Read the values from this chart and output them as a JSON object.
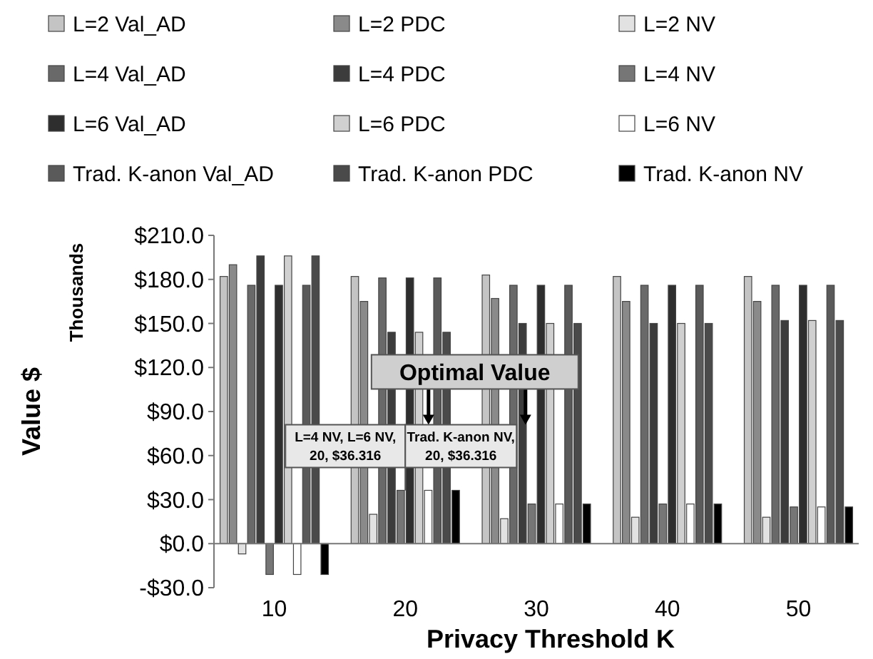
{
  "chart_data": {
    "type": "bar",
    "xlabel": "Privacy Threshold K",
    "ylabel": "Value $",
    "categories": [
      "10",
      "20",
      "30",
      "40",
      "50"
    ],
    "series": [
      {
        "name": "L=2 Val_AD",
        "color": "#c4c4c4",
        "values": [
          182,
          182,
          183,
          182,
          182
        ]
      },
      {
        "name": "L=2 PDC",
        "color": "#8a8a8a",
        "values": [
          190,
          165,
          167,
          165,
          165
        ]
      },
      {
        "name": "L=2 NV",
        "color": "#e2e2e2",
        "values": [
          -7,
          20,
          17,
          18,
          18
        ]
      },
      {
        "name": "L=4 Val_AD",
        "color": "#696969",
        "values": [
          176,
          181,
          176,
          176,
          176
        ]
      },
      {
        "name": "L=4 PDC",
        "color": "#3c3c3c",
        "values": [
          196,
          144,
          150,
          150,
          152
        ]
      },
      {
        "name": "L=4 NV",
        "color": "#767676",
        "values": [
          -21,
          36.316,
          27,
          27,
          25
        ]
      },
      {
        "name": "L=6 Val_AD",
        "color": "#2e2e2e",
        "values": [
          176,
          181,
          176,
          176,
          176
        ]
      },
      {
        "name": "L=6 PDC",
        "color": "#d0d0d0",
        "values": [
          196,
          144,
          150,
          150,
          152
        ]
      },
      {
        "name": "L=6 NV",
        "color": "#ffffff",
        "values": [
          -21,
          36.316,
          27,
          27,
          25
        ]
      },
      {
        "name": "Trad. K-anon Val_AD",
        "color": "#5a5a5a",
        "values": [
          176,
          181,
          176,
          176,
          176
        ]
      },
      {
        "name": "Trad. K-anon PDC",
        "color": "#4a4a4a",
        "values": [
          196,
          144,
          150,
          150,
          152
        ]
      },
      {
        "name": "Trad. K-anon NV",
        "color": "#000000",
        "values": [
          -21,
          36.316,
          27,
          27,
          25
        ]
      }
    ],
    "ylim": [
      -30,
      210
    ],
    "yticks": [
      {
        "value": -30,
        "label": "-$30.0"
      },
      {
        "value": 0,
        "label": "$0.0"
      },
      {
        "value": 30,
        "label": "$30.0"
      },
      {
        "value": 60,
        "label": "$60.0"
      },
      {
        "value": 90,
        "label": "$90.0"
      },
      {
        "value": 120,
        "label": "$120.0"
      },
      {
        "value": 150,
        "label": "$150.0"
      },
      {
        "value": 180,
        "label": "$180.0"
      },
      {
        "value": 210,
        "label": "$210.0"
      }
    ],
    "grid": false,
    "legend": "top",
    "annotations": [
      "Thousands",
      "Optimal Value",
      {
        "text": "L=4 NV, L=6 NV, 20, $36.316",
        "x": "20",
        "y": 36.316
      },
      {
        "text": "Trad. K-anon NV, 20, $36.316",
        "x": "20",
        "y": 36.316
      }
    ]
  }
}
